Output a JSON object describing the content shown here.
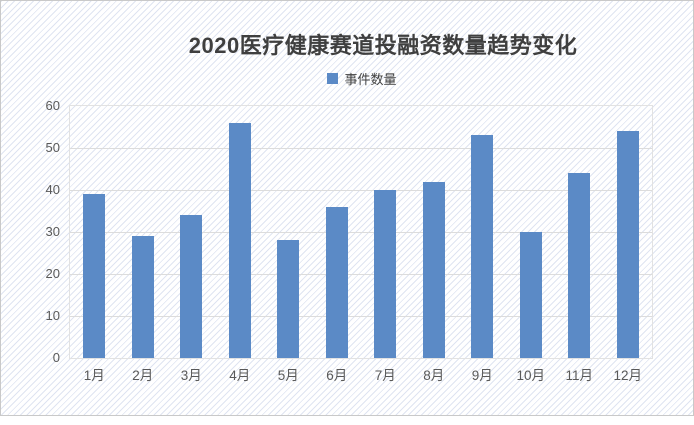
{
  "chart_data": {
    "type": "bar",
    "title": "2020医疗健康赛道投融资数量趋势变化",
    "categories": [
      "1月",
      "2月",
      "3月",
      "4月",
      "5月",
      "6月",
      "7月",
      "8月",
      "9月",
      "10月",
      "11月",
      "12月"
    ],
    "series": [
      {
        "name": "事件数量",
        "values": [
          39,
          29,
          34,
          56,
          28,
          36,
          40,
          42,
          53,
          30,
          44,
          54
        ]
      }
    ],
    "xlabel": "",
    "ylabel": "",
    "ylim": [
      0,
      60
    ],
    "yticks": [
      0,
      10,
      20,
      30,
      40,
      50,
      60
    ],
    "grid": true,
    "legend_position": "top-center"
  },
  "colors": {
    "bar": "#5b8ac6",
    "grid": "#dcdcdc",
    "plot_border": "#e2e2e2",
    "axis_text": "#595959",
    "title_text": "#3f3f3f",
    "legend_text": "#404040",
    "card_border": "#c9c9c9"
  }
}
